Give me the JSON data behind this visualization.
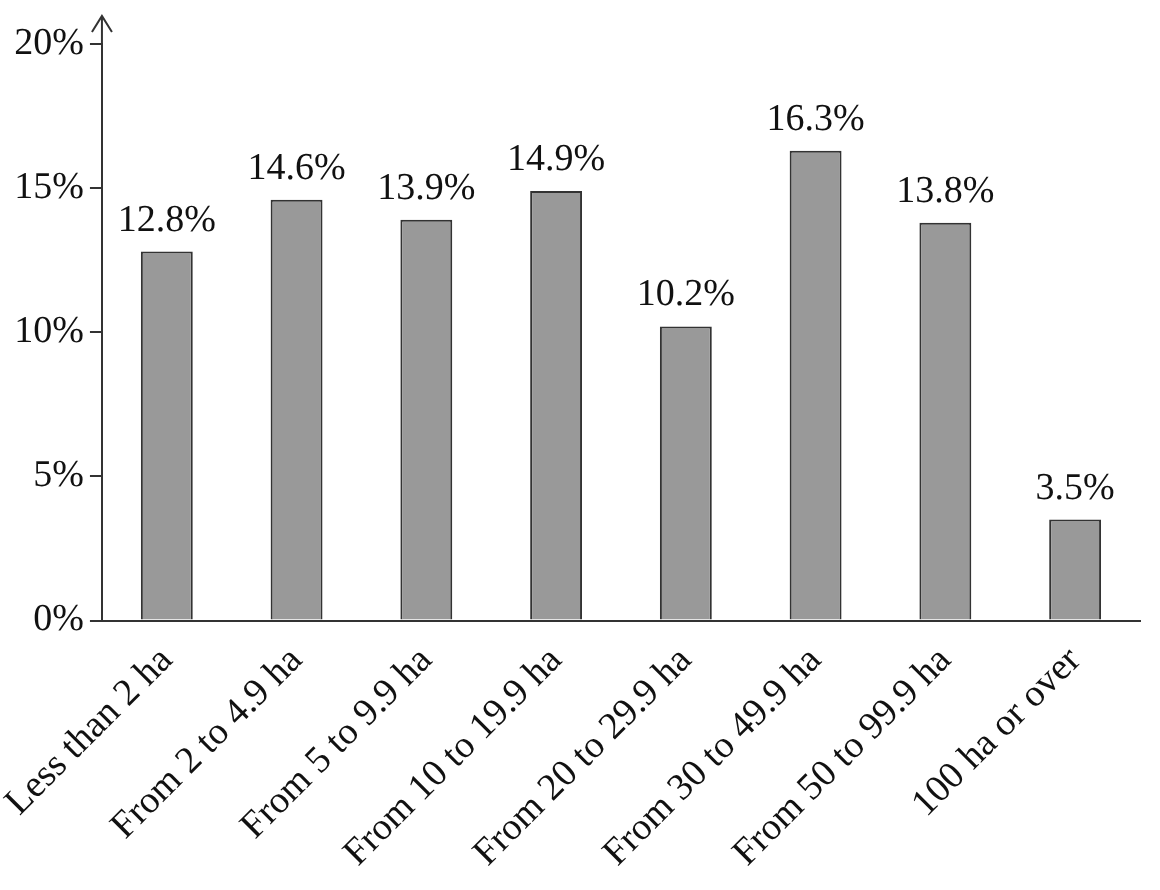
{
  "chart_data": {
    "type": "bar",
    "categories": [
      "Less than 2 ha",
      "From 2 to 4.9 ha",
      "From 5 to 9.9 ha",
      "From 10 to 19.9 ha",
      "From 20 to 29.9 ha",
      "From 30 to 49.9 ha",
      "From 50 to 99.9 ha",
      "100 ha or over"
    ],
    "values": [
      12.8,
      14.6,
      13.9,
      14.9,
      10.2,
      16.3,
      13.8,
      3.5
    ],
    "value_labels": [
      "12.8%",
      "14.6%",
      "13.9%",
      "14.9%",
      "10.2%",
      "16.3%",
      "13.8%",
      "3.5%"
    ],
    "color": "#999999",
    "ylim": [
      0,
      20
    ],
    "yticks": [
      {
        "value": 0,
        "label": "0%"
      },
      {
        "value": 5,
        "label": "5%"
      },
      {
        "value": 10,
        "label": "10%"
      },
      {
        "value": 15,
        "label": "15%"
      },
      {
        "value": 20,
        "label": "20%"
      }
    ],
    "grid": false,
    "legend": false
  }
}
